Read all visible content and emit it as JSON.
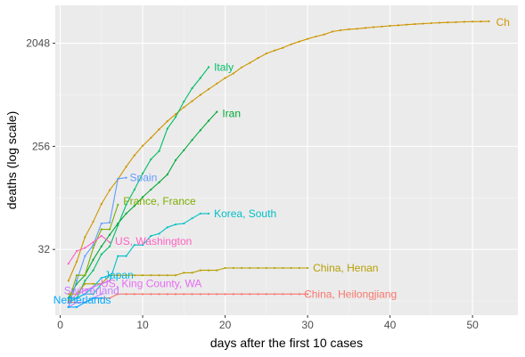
{
  "chart_data": {
    "type": "line",
    "xlabel": "days after the first  10  cases",
    "ylabel": "deaths  (log scale)",
    "y_scale": "log2",
    "xlim": [
      -0.6,
      55.5
    ],
    "ylim": [
      8.5,
      4400
    ],
    "x_ticks": [
      0,
      10,
      20,
      30,
      40,
      50
    ],
    "y_ticks": [
      32,
      256,
      2048
    ],
    "grid": true,
    "legend": "none (labels at line ends)",
    "background": "#ebebeb",
    "series": [
      {
        "name": "China",
        "label": "Ch",
        "color": "#cd9600",
        "x": [
          1,
          2,
          3,
          4,
          5,
          6,
          7,
          8,
          9,
          10,
          11,
          12,
          13,
          14,
          15,
          16,
          17,
          18,
          19,
          20,
          21,
          22,
          23,
          24,
          25,
          26,
          27,
          28,
          29,
          30,
          31,
          32,
          33,
          34,
          35,
          36,
          37,
          38,
          39,
          40,
          41,
          42,
          43,
          44,
          45,
          46,
          47,
          48,
          49,
          50,
          51,
          52
        ],
        "y": [
          17,
          25,
          41,
          56,
          80,
          106,
          132,
          170,
          213,
          259,
          304,
          361,
          425,
          490,
          563,
          637,
          722,
          811,
          908,
          1016,
          1113,
          1259,
          1380,
          1523,
          1665,
          1770,
          1868,
          2004,
          2118,
          2236,
          2345,
          2442,
          2592,
          2663,
          2715,
          2744,
          2788,
          2835,
          2870,
          2912,
          2943,
          2981,
          3012,
          3042,
          3070,
          3097,
          3119,
          3136,
          3158,
          3169,
          3176,
          3189
        ]
      },
      {
        "name": "Italy",
        "label": "Italy",
        "color": "#00be67",
        "x": [
          1,
          2,
          3,
          4,
          5,
          6,
          7,
          8,
          9,
          10,
          11,
          12,
          13,
          14,
          15,
          16,
          17,
          18
        ],
        "y": [
          11,
          12,
          17,
          21,
          29,
          34,
          52,
          79,
          107,
          148,
          197,
          233,
          366,
          463,
          631,
          827,
          1016,
          1266
        ]
      },
      {
        "name": "Iran",
        "label": "Iran",
        "color": "#00a936",
        "x": [
          1,
          2,
          3,
          4,
          5,
          6,
          7,
          8,
          9,
          10,
          11,
          12,
          13,
          14,
          15,
          16,
          17,
          18,
          19
        ],
        "y": [
          12,
          16,
          19,
          26,
          34,
          43,
          54,
          66,
          77,
          92,
          107,
          124,
          145,
          194,
          237,
          291,
          354,
          429,
          514
        ]
      },
      {
        "name": "Spain",
        "label": "Spain",
        "color": "#619cff",
        "x": [
          1,
          2,
          3,
          4,
          5,
          6,
          7,
          8
        ],
        "y": [
          10,
          17,
          28,
          35,
          54,
          55,
          133,
          136
        ]
      },
      {
        "name": "France, France",
        "label": "France, France",
        "color": "#7cae00",
        "x": [
          1,
          2,
          3,
          4,
          5,
          6,
          7
        ],
        "y": [
          11,
          19,
          19,
          33,
          48,
          48,
          79
        ]
      },
      {
        "name": "Korea, South",
        "label": "Korea, South",
        "color": "#00bfc4",
        "x": [
          1,
          2,
          3,
          4,
          5,
          6,
          7,
          8,
          9,
          10,
          11,
          12,
          13,
          14,
          15,
          16,
          17,
          18
        ],
        "y": [
          11,
          12,
          13,
          13,
          16,
          17,
          28,
          28,
          35,
          35,
          42,
          44,
          50,
          53,
          54,
          60,
          66,
          66
        ]
      },
      {
        "name": "US, Washington",
        "label": "US, Washington",
        "color": "#ff61c3",
        "x": [
          1,
          2,
          3,
          4,
          5,
          6
        ],
        "y": [
          24,
          31,
          33,
          37,
          42,
          37
        ]
      },
      {
        "name": "China, Henan",
        "label": "China, Henan",
        "color": "#b79f00",
        "x": [
          1,
          2,
          3,
          4,
          5,
          6,
          7,
          8,
          9,
          10,
          11,
          12,
          13,
          14,
          15,
          16,
          17,
          18,
          19,
          20,
          21,
          22,
          23,
          24,
          25,
          26,
          27,
          28,
          29,
          30
        ],
        "y": [
          13,
          13,
          16,
          16,
          16,
          19,
          19,
          19,
          19,
          19,
          19,
          19,
          19,
          19,
          20,
          20,
          21,
          21,
          21,
          22,
          22,
          22,
          22,
          22,
          22,
          22,
          22,
          22,
          22,
          22
        ]
      },
      {
        "name": "Japan",
        "label": "Japan",
        "color": "#00b8e7",
        "x": [
          1,
          2,
          3,
          4,
          5,
          6
        ],
        "y": [
          12,
          12,
          13,
          15,
          18,
          19
        ]
      },
      {
        "name": "US, King County, WA",
        "label": "US, King County, WA",
        "color": "#e76bf3",
        "x": [
          1,
          2,
          3,
          4,
          5,
          6
        ],
        "y": [
          11,
          13,
          14,
          15,
          16,
          17
        ]
      },
      {
        "name": "China, Heilongjiang",
        "label": "China, Heilongjiang",
        "color": "#f8766d",
        "x": [
          1,
          2,
          3,
          4,
          5,
          6,
          7,
          8,
          9,
          10,
          11,
          12,
          13,
          14,
          15,
          16,
          17,
          18,
          19,
          20,
          21,
          22,
          23,
          24,
          25,
          26,
          27,
          28,
          29,
          30
        ],
        "y": [
          11,
          11,
          11,
          12,
          12,
          12,
          13,
          13,
          13,
          13,
          13,
          13,
          13,
          13,
          13,
          13,
          13,
          13,
          13,
          13,
          13,
          13,
          13,
          13,
          13,
          13,
          13,
          13,
          13,
          13
        ]
      },
      {
        "name": "Switzerland",
        "label": "Switzerland",
        "color": "#c77cff",
        "x": [
          1,
          2,
          3,
          4,
          5
        ],
        "y": [
          10,
          11,
          11,
          12,
          13
        ]
      },
      {
        "name": "Netherlands",
        "label": "Netherlands",
        "color": "#00a9ff",
        "x": [
          1,
          2,
          3,
          4,
          5
        ],
        "y": [
          10,
          10,
          11,
          12,
          12
        ]
      }
    ]
  }
}
